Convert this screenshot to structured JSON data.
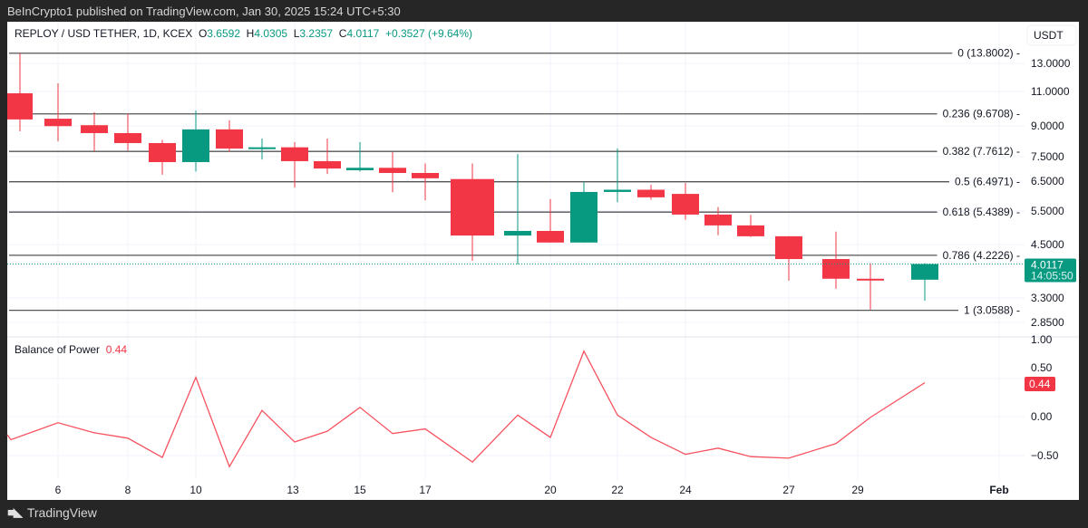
{
  "header": {
    "publisher": "BeInCrypto1 published on TradingView.com, Jan 30, 2025 15:24 UTC+5:30"
  },
  "legend": {
    "symbol": "REPLOY / USD TETHER, 1D, KCEX",
    "o_label": "O",
    "o": "3.6592",
    "h_label": "H",
    "h": "4.0305",
    "l_label": "L",
    "l": "3.2357",
    "c_label": "C",
    "c": "4.0117",
    "change": "+0.3527 (+9.64%)"
  },
  "price_axis": {
    "currency": "USDT",
    "ticks": [
      "13.0000",
      "11.0000",
      "9.0000",
      "7.5000",
      "6.5000",
      "5.5000",
      "4.5000",
      "3.3000",
      "2.8500"
    ],
    "last_price": "4.0117",
    "countdown": "14:05:50"
  },
  "fib_levels": [
    {
      "label": "0 (13.8002)",
      "price": 13.8002
    },
    {
      "label": "0.236 (9.6708)",
      "price": 9.6708
    },
    {
      "label": "0.382 (7.7612)",
      "price": 7.7612
    },
    {
      "label": "0.5 (6.4971)",
      "price": 6.4971
    },
    {
      "label": "0.618 (5.4389)",
      "price": 5.4389
    },
    {
      "label": "0.786 (4.2226)",
      "price": 4.2226
    },
    {
      "label": "1 (3.0588)",
      "price": 3.0588
    }
  ],
  "candles": [
    {
      "day": 5,
      "o": 10.91,
      "h": 13.8,
      "l": 8.73,
      "c": 9.36
    },
    {
      "day": 6,
      "o": 9.4,
      "h": 11.57,
      "l": 8.24,
      "c": 9.0
    },
    {
      "day": 7,
      "o": 9.05,
      "h": 9.76,
      "l": 7.77,
      "c": 8.64
    },
    {
      "day": 8,
      "o": 8.64,
      "h": 9.7,
      "l": 7.8,
      "c": 8.15
    },
    {
      "day": 9,
      "o": 8.15,
      "h": 8.3,
      "l": 6.77,
      "c": 7.29
    },
    {
      "day": 10,
      "o": 7.29,
      "h": 9.86,
      "l": 6.9,
      "c": 8.83
    },
    {
      "day": 11,
      "o": 8.83,
      "h": 9.31,
      "l": 7.75,
      "c": 7.89
    },
    {
      "day": 12,
      "o": 7.89,
      "h": 8.37,
      "l": 7.4,
      "c": 7.95
    },
    {
      "day": 13,
      "o": 7.95,
      "h": 8.2,
      "l": 6.28,
      "c": 7.33
    },
    {
      "day": 14,
      "o": 7.33,
      "h": 8.37,
      "l": 6.8,
      "c": 7.02
    },
    {
      "day": 15,
      "o": 6.95,
      "h": 8.2,
      "l": 6.9,
      "c": 7.05
    },
    {
      "day": 16,
      "o": 7.05,
      "h": 7.73,
      "l": 6.11,
      "c": 6.84
    },
    {
      "day": 17,
      "o": 6.84,
      "h": 7.23,
      "l": 5.83,
      "c": 6.63
    },
    {
      "day": 18,
      "o": 6.6,
      "h": 7.23,
      "l": 4.09,
      "c": 4.74
    },
    {
      "day": 19,
      "o": 4.74,
      "h": 7.64,
      "l": 4.0,
      "c": 4.87
    },
    {
      "day": 20,
      "o": 4.87,
      "h": 5.87,
      "l": 4.55,
      "c": 4.55
    },
    {
      "day": 21,
      "o": 4.55,
      "h": 6.5,
      "l": 4.55,
      "c": 6.12
    },
    {
      "day": 22,
      "o": 6.12,
      "h": 7.9,
      "l": 5.76,
      "c": 6.2
    },
    {
      "day": 23,
      "o": 6.2,
      "h": 6.38,
      "l": 5.85,
      "c": 5.93
    },
    {
      "day": 24,
      "o": 6.05,
      "h": 6.45,
      "l": 5.2,
      "c": 5.36
    },
    {
      "day": 25,
      "o": 5.36,
      "h": 5.6,
      "l": 4.75,
      "c": 5.03
    },
    {
      "day": 26,
      "o": 5.03,
      "h": 5.35,
      "l": 4.7,
      "c": 4.72
    },
    {
      "day": 27,
      "o": 4.72,
      "h": 4.72,
      "l": 3.64,
      "c": 4.13
    },
    {
      "day": 28,
      "o": 4.13,
      "h": 4.85,
      "l": 3.47,
      "c": 3.68
    },
    {
      "day": 29,
      "o": 3.68,
      "h": 4.03,
      "l": 3.07,
      "c": 3.66
    },
    {
      "day": 30,
      "o": 3.6592,
      "h": 4.0305,
      "l": 3.2357,
      "c": 4.0117
    }
  ],
  "indicator": {
    "name": "Balance of Power",
    "value": "0.44",
    "ticks": [
      "1.00",
      "0.50",
      "0.00",
      "−0.50"
    ],
    "values": [
      -0.3,
      -0.08,
      -0.21,
      -0.28,
      -0.53,
      0.51,
      -0.65,
      0.08,
      -0.33,
      -0.19,
      0.12,
      -0.22,
      -0.16,
      -0.59,
      0.02,
      -0.27,
      0.85,
      0.02,
      -0.27,
      -0.49,
      -0.41,
      -0.52,
      -0.54,
      -0.35,
      -0.01,
      0.44
    ]
  },
  "time_axis": [
    "6",
    "8",
    "10",
    "13",
    "15",
    "17",
    "20",
    "22",
    "24",
    "27",
    "29",
    "Feb"
  ],
  "colors": {
    "up": "#089981",
    "down": "#f23645",
    "bop": "#f7525f"
  },
  "footer": {
    "brand": "TradingView"
  }
}
